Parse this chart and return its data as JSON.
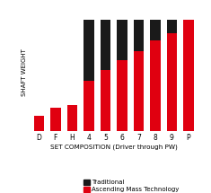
{
  "categories": [
    "D",
    "F",
    "H",
    "4",
    "5",
    "6",
    "7",
    "8",
    "9",
    "P"
  ],
  "red_values": [
    0.13,
    0.2,
    0.22,
    0.43,
    0.52,
    0.6,
    0.68,
    0.77,
    0.83,
    0.95
  ],
  "black_values": [
    0.0,
    0.0,
    0.0,
    0.52,
    0.43,
    0.35,
    0.27,
    0.18,
    0.12,
    0.0
  ],
  "red_color": "#e00010",
  "black_color": "#1a1a1a",
  "bg_color": "#ffffff",
  "xlabel": "SET COMPOSITION (Driver through PW)",
  "ylabel": "SHAFT WEIGHT",
  "legend_traditional": "Traditional",
  "legend_ascending": "Ascending Mass Technology",
  "ylim": [
    0,
    1.0
  ],
  "xlabel_fontsize": 5.2,
  "ylabel_fontsize": 5.0,
  "legend_fontsize": 5.0,
  "tick_fontsize": 5.5,
  "grid_color": "#dddddd"
}
